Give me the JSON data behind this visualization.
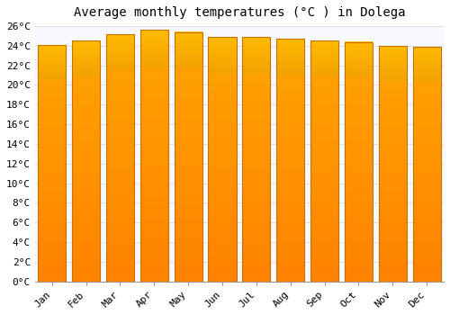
{
  "title": "Average monthly temperatures (°C ) in Dolega",
  "months": [
    "Jan",
    "Feb",
    "Mar",
    "Apr",
    "May",
    "Jun",
    "Jul",
    "Aug",
    "Sep",
    "Oct",
    "Nov",
    "Dec"
  ],
  "temperatures": [
    24.1,
    24.5,
    25.2,
    25.6,
    25.4,
    24.9,
    24.9,
    24.7,
    24.5,
    24.4,
    24.0,
    23.9
  ],
  "bar_color_center": "#FFB300",
  "bar_color_edge": "#F57C00",
  "bar_gradient_light": "#FFD740",
  "background_color": "#FFFFFF",
  "plot_bg_color": "#F8F8FF",
  "grid_color": "#E0E0E0",
  "ylim": [
    0,
    26
  ],
  "ytick_step": 2,
  "title_fontsize": 10,
  "tick_fontsize": 8,
  "font_family": "monospace"
}
